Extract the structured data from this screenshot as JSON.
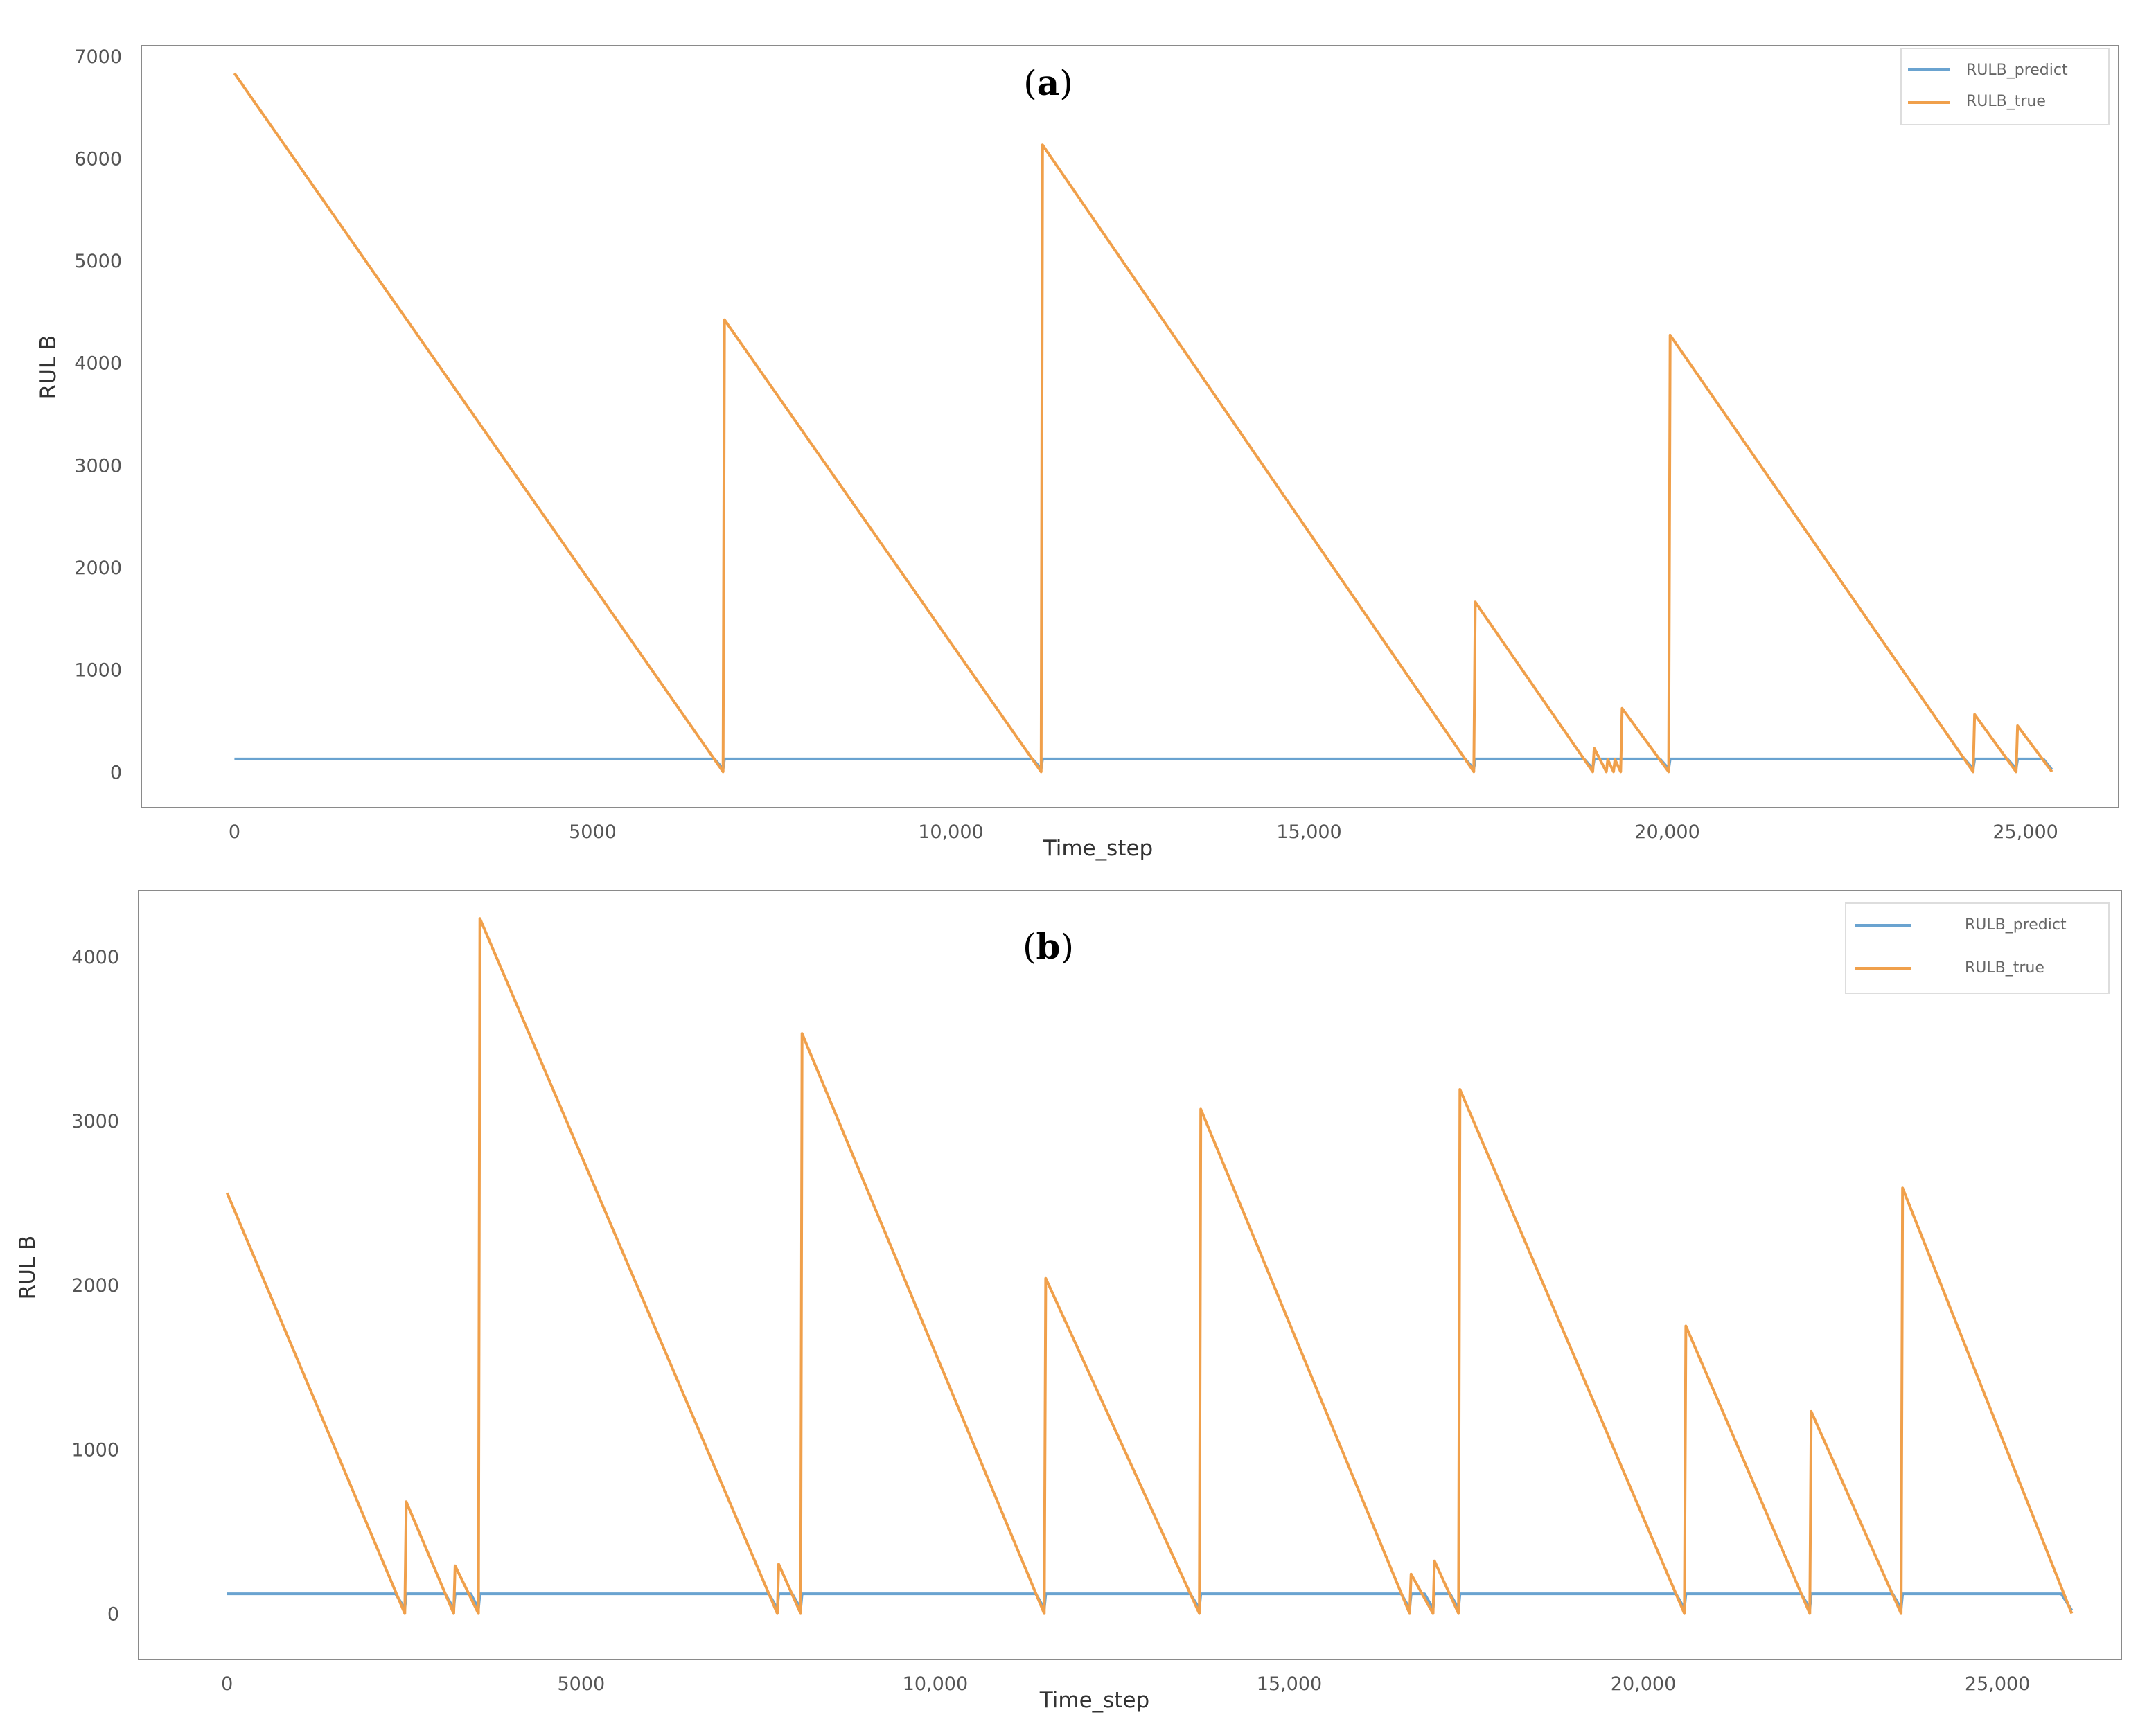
{
  "chart_data": [
    {
      "type": "line",
      "panel_label": "a",
      "xlabel": "Time_step",
      "ylabel": "RUL B",
      "xlim": [
        -1300,
        26300
      ],
      "ylim": [
        -350,
        7100
      ],
      "x_ticks": [
        {
          "value": 0,
          "label": "0"
        },
        {
          "value": 5000,
          "label": "5000"
        },
        {
          "value": 10000,
          "label": "10,000"
        },
        {
          "value": 15000,
          "label": "15,000"
        },
        {
          "value": 20000,
          "label": "20,000"
        },
        {
          "value": 25000,
          "label": "25,000"
        }
      ],
      "y_ticks": [
        {
          "value": 0,
          "label": "0"
        },
        {
          "value": 1000,
          "label": "1000"
        },
        {
          "value": 2000,
          "label": "2000"
        },
        {
          "value": 3000,
          "label": "3000"
        },
        {
          "value": 4000,
          "label": "4000"
        },
        {
          "value": 5000,
          "label": "5000"
        },
        {
          "value": 6000,
          "label": "6000"
        },
        {
          "value": 7000,
          "label": "7000"
        }
      ],
      "legend_position": "top-right",
      "series": [
        {
          "name": "RULB_predict",
          "color": "#6aa3d0",
          "x": [
            0,
            6700,
            6820,
            6840,
            11140,
            11260,
            11280,
            17180,
            17300,
            17320,
            18840,
            18960,
            18980,
            19900,
            20020,
            20040,
            24150,
            24270,
            24290,
            24750,
            24870,
            24890,
            25250,
            25370
          ],
          "y": [
            125,
            125,
            30,
            125,
            125,
            30,
            125,
            125,
            30,
            125,
            125,
            30,
            125,
            125,
            30,
            125,
            125,
            30,
            125,
            125,
            30,
            125,
            125,
            20
          ]
        },
        {
          "name": "RULB_true",
          "color": "#f0a04b",
          "x": [
            0,
            6820,
            6840,
            11260,
            11280,
            17300,
            17320,
            18960,
            18980,
            19150,
            19170,
            19250,
            19270,
            19350,
            19370,
            20020,
            20040,
            24270,
            24290,
            24870,
            24890,
            25370
          ],
          "y": [
            6830,
            0,
            4420,
            0,
            6130,
            0,
            1660,
            0,
            230,
            0,
            120,
            0,
            120,
            0,
            620,
            0,
            4270,
            0,
            560,
            0,
            450,
            0
          ]
        }
      ]
    },
    {
      "type": "line",
      "panel_label": "b",
      "xlabel": "Time_step",
      "ylabel": "RUL B",
      "xlim": [
        -1250,
        26750
      ],
      "ylim": [
        -280,
        4400
      ],
      "x_ticks": [
        {
          "value": 0,
          "label": "0"
        },
        {
          "value": 5000,
          "label": "5000"
        },
        {
          "value": 10000,
          "label": "10,000"
        },
        {
          "value": 15000,
          "label": "15,000"
        },
        {
          "value": 20000,
          "label": "20,000"
        },
        {
          "value": 25000,
          "label": "25,000"
        }
      ],
      "y_ticks": [
        {
          "value": 0,
          "label": "0"
        },
        {
          "value": 1000,
          "label": "1000"
        },
        {
          "value": 2000,
          "label": "2000"
        },
        {
          "value": 3000,
          "label": "3000"
        },
        {
          "value": 4000,
          "label": "4000"
        }
      ],
      "legend_position": "top-right",
      "series": [
        {
          "name": "RULB_predict",
          "color": "#6aa3d0",
          "x": [
            0,
            2380,
            2510,
            2530,
            3080,
            3200,
            3220,
            3440,
            3550,
            3570,
            7650,
            7770,
            7790,
            7980,
            8100,
            8120,
            11420,
            11540,
            11560,
            13600,
            13730,
            13750,
            16580,
            16700,
            16720,
            16910,
            17030,
            17050,
            17270,
            17390,
            17410,
            20460,
            20580,
            20600,
            22230,
            22350,
            22370,
            23520,
            23640,
            23660,
            25900,
            26050
          ],
          "y": [
            120,
            120,
            30,
            120,
            120,
            30,
            120,
            120,
            30,
            120,
            120,
            30,
            120,
            120,
            30,
            120,
            120,
            30,
            120,
            120,
            30,
            120,
            120,
            30,
            120,
            120,
            30,
            120,
            120,
            30,
            120,
            120,
            30,
            120,
            120,
            30,
            120,
            120,
            30,
            120,
            120,
            20
          ]
        },
        {
          "name": "RULB_true",
          "color": "#f0a04b",
          "x": [
            0,
            2510,
            2530,
            3200,
            3220,
            3550,
            3570,
            7770,
            7790,
            8100,
            8120,
            11540,
            11560,
            13730,
            13750,
            16700,
            16720,
            17030,
            17050,
            17390,
            17410,
            20580,
            20600,
            22350,
            22370,
            23640,
            23660,
            26050
          ],
          "y": [
            2560,
            0,
            680,
            0,
            290,
            0,
            4230,
            0,
            300,
            0,
            3530,
            0,
            2040,
            0,
            3070,
            0,
            240,
            0,
            320,
            0,
            3190,
            0,
            1750,
            0,
            1230,
            0,
            2590,
            0
          ]
        }
      ]
    }
  ]
}
